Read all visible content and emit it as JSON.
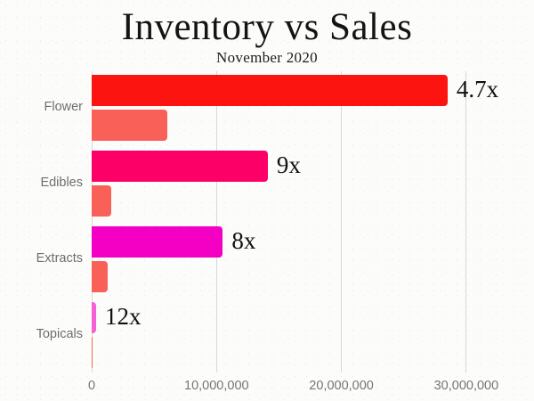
{
  "title": "Inventory vs Sales",
  "subtitle": "November 2020",
  "colors": {
    "background": "#fcfcfa",
    "gridline": "#d9d9d7",
    "axis_label": "#75757a",
    "category_label": "#6e6e6e",
    "annotation_text": "#111111",
    "sales_bar": "#f96158",
    "inventory_bars": [
      "#fc1510",
      "#fc0068",
      "#f400c4",
      "#f75fd7"
    ]
  },
  "chart_data": {
    "type": "bar",
    "orientation": "horizontal",
    "title": "Inventory vs Sales",
    "subtitle": "November 2020",
    "categories": [
      "Flower",
      "Edibles",
      "Extracts",
      "Topicals"
    ],
    "series": [
      {
        "name": "Inventory",
        "values": [
          28500000,
          14100000,
          10500000,
          360000
        ],
        "colors": [
          "#fc1510",
          "#fc0068",
          "#f400c4",
          "#f75fd7"
        ]
      },
      {
        "name": "Sales",
        "values": [
          6060000,
          1570000,
          1310000,
          30000
        ],
        "colors": [
          "#f96158",
          "#f96158",
          "#f96158",
          "#f96158"
        ]
      }
    ],
    "annotations": [
      {
        "category": "Flower",
        "label": "4.7x"
      },
      {
        "category": "Edibles",
        "label": "9x"
      },
      {
        "category": "Extracts",
        "label": "8x"
      },
      {
        "category": "Topicals",
        "label": "12x"
      }
    ],
    "x_axis": {
      "tick_labels": [
        "0",
        "10,000,000",
        "20,000,000",
        "30,000,000"
      ],
      "tick_values": [
        0,
        10000000,
        20000000,
        30000000
      ],
      "min": 0,
      "max": 35400000
    },
    "y_axis_label": "",
    "x_axis_label": "",
    "grid": true,
    "legend": false
  }
}
